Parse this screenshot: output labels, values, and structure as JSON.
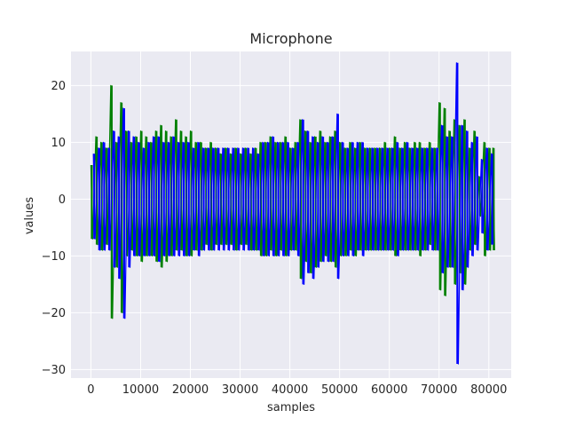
{
  "chart_data": {
    "type": "line",
    "title": "Microphone",
    "xlabel": "samples",
    "ylabel": "values",
    "xlim": [
      -4000,
      84500
    ],
    "ylim": [
      -31.5,
      26
    ],
    "xticks": [
      0,
      10000,
      20000,
      30000,
      40000,
      50000,
      60000,
      70000,
      80000
    ],
    "xtick_labels": [
      "0",
      "10000",
      "20000",
      "30000",
      "40000",
      "50000",
      "60000",
      "70000",
      "80000"
    ],
    "yticks": [
      20,
      10,
      0,
      -10,
      -20,
      -30
    ],
    "ytick_labels": [
      "20",
      "10",
      "0",
      "−10",
      "−20",
      "−30"
    ],
    "grid": true,
    "background": "#eaeaf2",
    "grid_color": "#ffffff",
    "series": [
      {
        "color": "#008000",
        "x": [
          0,
          1000,
          2000,
          3000,
          4000,
          5000,
          6000,
          7000,
          8000,
          9000,
          10000,
          11000,
          12000,
          13000,
          14000,
          15000,
          16000,
          17000,
          18000,
          19000,
          20000,
          21000,
          22000,
          23000,
          24000,
          25000,
          26000,
          27000,
          28000,
          29000,
          30000,
          31000,
          32000,
          33000,
          34000,
          35000,
          36000,
          37000,
          38000,
          39000,
          40000,
          41000,
          42000,
          43000,
          44000,
          45000,
          46000,
          47000,
          48000,
          49000,
          50000,
          51000,
          52000,
          53000,
          54000,
          55000,
          56000,
          57000,
          58000,
          59000,
          60000,
          61000,
          62000,
          63000,
          64000,
          65000,
          66000,
          67000,
          68000,
          69000,
          70000,
          71000,
          72000,
          73000,
          74000,
          75000,
          76000,
          77000,
          78000,
          79000,
          80000,
          80800
        ],
        "ymax": [
          6,
          11,
          10,
          9,
          20,
          10,
          17,
          12,
          10,
          11,
          12,
          11,
          10,
          12,
          13,
          12,
          11,
          14,
          12,
          11,
          12,
          10,
          10,
          9,
          10,
          9,
          8,
          9,
          8,
          9,
          8,
          9,
          8,
          9,
          10,
          10,
          11,
          10,
          10,
          11,
          9,
          10,
          14,
          12,
          10,
          11,
          12,
          10,
          11,
          12,
          10,
          9,
          10,
          9,
          10,
          9,
          9,
          9,
          9,
          10,
          9,
          11,
          9,
          10,
          9,
          10,
          10,
          9,
          10,
          9,
          17,
          16,
          12,
          14,
          13,
          14,
          9,
          12,
          4,
          10,
          9,
          9
        ],
        "ymin": [
          -7,
          -8,
          -9,
          -8,
          -21,
          -12,
          -20,
          -10,
          -9,
          -10,
          -11,
          -10,
          -10,
          -11,
          -12,
          -11,
          -10,
          -9,
          -9,
          -10,
          -10,
          -9,
          -9,
          -8,
          -9,
          -8,
          -8,
          -8,
          -8,
          -9,
          -8,
          -8,
          -9,
          -9,
          -10,
          -10,
          -9,
          -10,
          -9,
          -10,
          -9,
          -9,
          -14,
          -11,
          -13,
          -12,
          -11,
          -10,
          -11,
          -12,
          -10,
          -10,
          -9,
          -10,
          -9,
          -9,
          -9,
          -9,
          -9,
          -9,
          -9,
          -10,
          -9,
          -9,
          -9,
          -9,
          -10,
          -9,
          -8,
          -9,
          -16,
          -17,
          -12,
          -15,
          -13,
          -15,
          -9,
          -8,
          -3,
          -10,
          -9,
          -9
        ]
      },
      {
        "color": "#0000ff",
        "x": [
          500,
          1500,
          2500,
          3500,
          4500,
          5500,
          6500,
          7500,
          8500,
          9500,
          10500,
          11500,
          12500,
          13500,
          14500,
          15500,
          16500,
          17500,
          18500,
          19500,
          20500,
          21500,
          22500,
          23500,
          24500,
          25500,
          26500,
          27500,
          28500,
          29500,
          30500,
          31500,
          32500,
          33500,
          34500,
          35500,
          36500,
          37500,
          38500,
          39500,
          40500,
          41500,
          42500,
          43500,
          44500,
          45500,
          46500,
          47500,
          48500,
          49500,
          50500,
          51500,
          52500,
          53500,
          54500,
          55500,
          56500,
          57500,
          58500,
          59500,
          60500,
          61500,
          62500,
          63500,
          64500,
          65500,
          66500,
          67500,
          68500,
          69500,
          70500,
          71500,
          72500,
          73500,
          74500,
          75500,
          76500,
          77500,
          78500,
          79500,
          80500
        ],
        "ymax": [
          8,
          9,
          10,
          9,
          12,
          11,
          16,
          12,
          11,
          10,
          9,
          10,
          11,
          11,
          10,
          10,
          11,
          10,
          10,
          10,
          9,
          10,
          9,
          9,
          9,
          9,
          9,
          9,
          9,
          9,
          9,
          9,
          9,
          8,
          10,
          10,
          11,
          10,
          10,
          10,
          9,
          10,
          14,
          12,
          11,
          10,
          11,
          10,
          11,
          15,
          10,
          9,
          10,
          10,
          10,
          9,
          9,
          9,
          9,
          9,
          9,
          10,
          9,
          10,
          9,
          9,
          9,
          9,
          9,
          9,
          13,
          11,
          11,
          24,
          13,
          12,
          10,
          11,
          7,
          9,
          8
        ],
        "ymin": [
          -7,
          -9,
          -9,
          -9,
          -12,
          -14,
          -21,
          -12,
          -10,
          -10,
          -10,
          -10,
          -10,
          -11,
          -10,
          -10,
          -10,
          -10,
          -10,
          -10,
          -9,
          -10,
          -9,
          -9,
          -9,
          -9,
          -9,
          -9,
          -9,
          -9,
          -9,
          -9,
          -9,
          -9,
          -10,
          -10,
          -10,
          -10,
          -10,
          -10,
          -9,
          -10,
          -15,
          -13,
          -14,
          -12,
          -11,
          -11,
          -11,
          -14,
          -10,
          -10,
          -10,
          -9,
          -10,
          -9,
          -9,
          -9,
          -9,
          -9,
          -9,
          -10,
          -9,
          -9,
          -9,
          -9,
          -9,
          -9,
          -9,
          -9,
          -13,
          -12,
          -12,
          -29,
          -16,
          -12,
          -10,
          -9,
          -6,
          -9,
          -8
        ]
      }
    ]
  }
}
